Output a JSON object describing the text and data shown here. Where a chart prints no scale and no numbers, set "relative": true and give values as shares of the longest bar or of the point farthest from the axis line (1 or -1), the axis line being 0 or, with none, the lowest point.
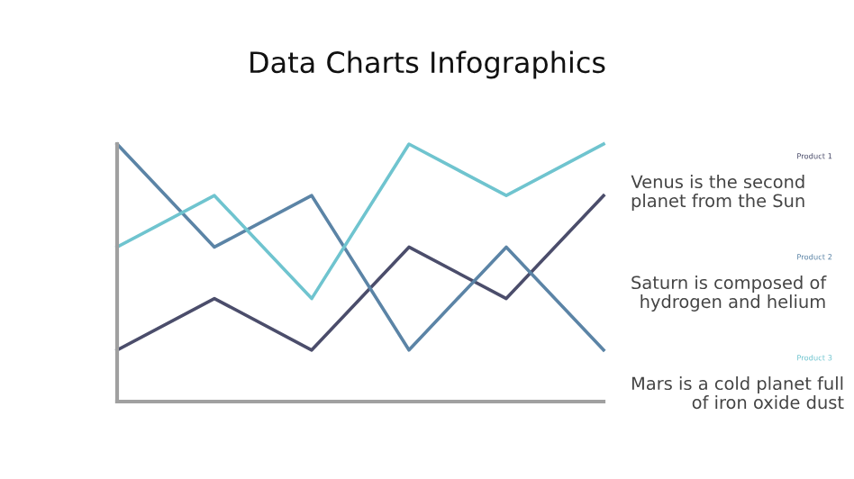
{
  "chart_data": {
    "type": "line",
    "title": "Data Charts Infographics",
    "relative": true,
    "legend": "right",
    "categories": [
      null,
      null,
      null,
      null,
      null,
      null
    ],
    "series": [
      {
        "name": "Product 1",
        "color": "#4b4d6b",
        "values": [
          0.2,
          0.4,
          0.2,
          0.6,
          0.4,
          0.8
        ]
      },
      {
        "name": "Product 2",
        "color": "#5b84a6",
        "values": [
          1,
          0.6,
          0.8,
          0.2,
          0.6,
          0.2
        ]
      },
      {
        "name": "Product 3",
        "color": "#6fc4cf",
        "values": [
          0.6,
          0.8,
          0.4,
          1,
          0.8,
          1
        ]
      }
    ],
    "annotations": [
      "Venus is the second planet from the Sun",
      "Saturn is composed of hydrogen and helium",
      "Mars is a cold planet full of iron oxide dust"
    ]
  }
}
